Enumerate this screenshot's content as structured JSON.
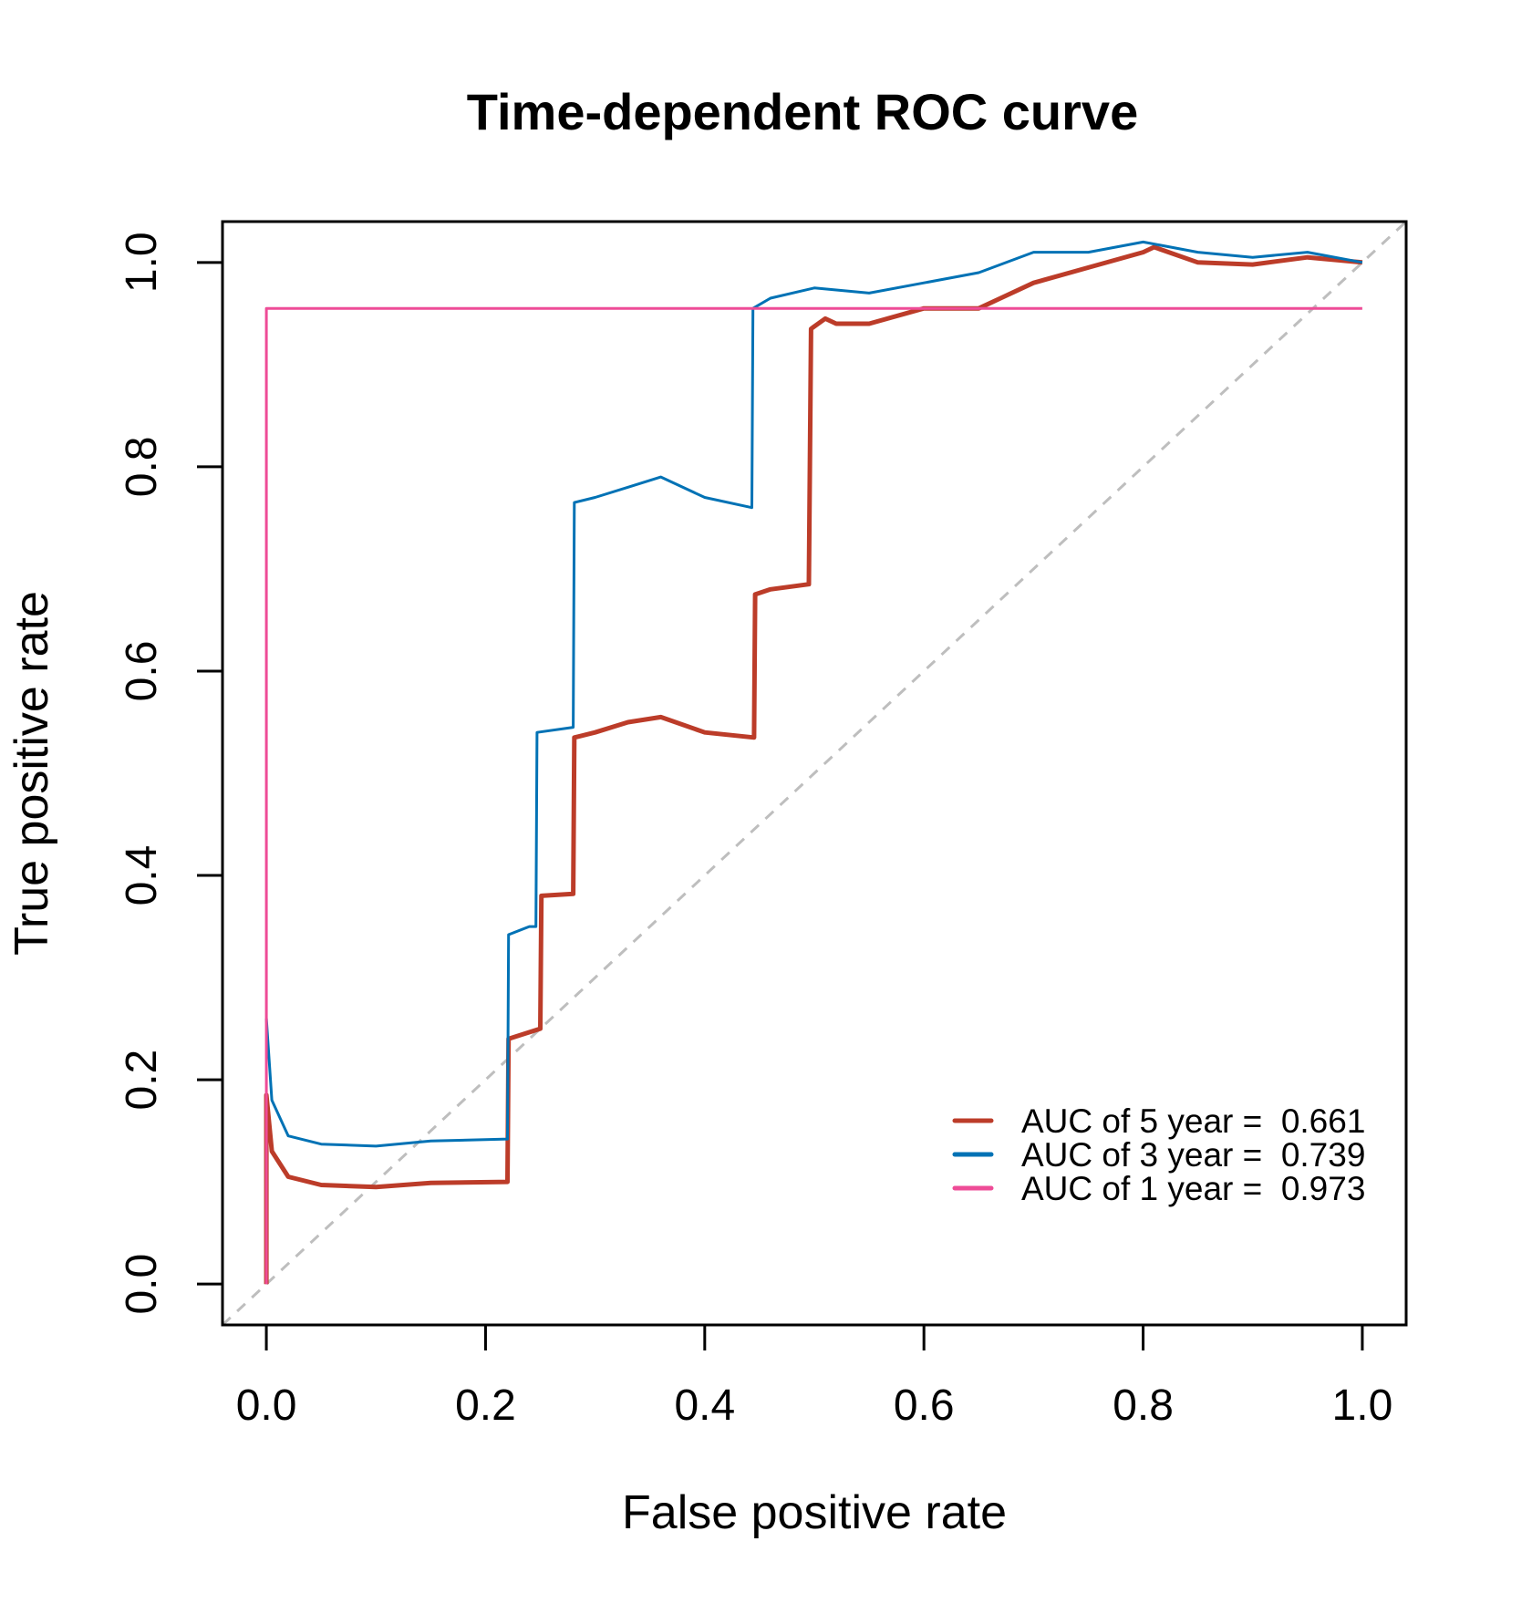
{
  "chart_data": {
    "type": "line",
    "title": "Time-dependent ROC curve",
    "xlabel": "False positive rate",
    "ylabel": "True positive rate",
    "xlim": [
      -0.04,
      1.04
    ],
    "ylim": [
      -0.04,
      1.04
    ],
    "xticks": [
      "0.0",
      "0.2",
      "0.4",
      "0.6",
      "0.8",
      "1.0"
    ],
    "yticks": [
      "0.0",
      "0.2",
      "0.4",
      "0.6",
      "0.8",
      "1.0"
    ],
    "grid": false,
    "legend_position": "bottom-right",
    "reference_line": {
      "type": "diagonal",
      "style": "dashed",
      "color": "#BEBEBE"
    },
    "series": [
      {
        "name": "AUC of 5 year =  0.661",
        "color": "#BC3C29",
        "points": [
          [
            0,
            0
          ],
          [
            0,
            0.185
          ],
          [
            0.005,
            0.13
          ],
          [
            0.02,
            0.105
          ],
          [
            0.05,
            0.097
          ],
          [
            0.1,
            0.095
          ],
          [
            0.15,
            0.099
          ],
          [
            0.22,
            0.1
          ],
          [
            0.221,
            0.24
          ],
          [
            0.25,
            0.25
          ],
          [
            0.251,
            0.38
          ],
          [
            0.28,
            0.382
          ],
          [
            0.281,
            0.535
          ],
          [
            0.3,
            0.54
          ],
          [
            0.33,
            0.55
          ],
          [
            0.36,
            0.555
          ],
          [
            0.4,
            0.54
          ],
          [
            0.445,
            0.535
          ],
          [
            0.446,
            0.675
          ],
          [
            0.46,
            0.68
          ],
          [
            0.495,
            0.685
          ],
          [
            0.497,
            0.935
          ],
          [
            0.51,
            0.945
          ],
          [
            0.52,
            0.94
          ],
          [
            0.55,
            0.94
          ],
          [
            0.6,
            0.955
          ],
          [
            0.65,
            0.955
          ],
          [
            0.67,
            0.965
          ],
          [
            0.7,
            0.98
          ],
          [
            0.75,
            0.995
          ],
          [
            0.8,
            1.01
          ],
          [
            0.81,
            1.015
          ],
          [
            0.85,
            1.0
          ],
          [
            0.9,
            0.998
          ],
          [
            0.95,
            1.005
          ],
          [
            1,
            1
          ]
        ]
      },
      {
        "name": "AUC of 3 year =  0.739",
        "color": "#0072B5",
        "points": [
          [
            0,
            0.26
          ],
          [
            0.005,
            0.18
          ],
          [
            0.02,
            0.145
          ],
          [
            0.05,
            0.137
          ],
          [
            0.1,
            0.135
          ],
          [
            0.15,
            0.14
          ],
          [
            0.22,
            0.142
          ],
          [
            0.221,
            0.342
          ],
          [
            0.24,
            0.35
          ],
          [
            0.246,
            0.35
          ],
          [
            0.247,
            0.54
          ],
          [
            0.28,
            0.545
          ],
          [
            0.281,
            0.765
          ],
          [
            0.3,
            0.77
          ],
          [
            0.33,
            0.78
          ],
          [
            0.36,
            0.79
          ],
          [
            0.4,
            0.77
          ],
          [
            0.443,
            0.76
          ],
          [
            0.444,
            0.955
          ],
          [
            0.46,
            0.965
          ],
          [
            0.5,
            0.975
          ],
          [
            0.55,
            0.97
          ],
          [
            0.6,
            0.98
          ],
          [
            0.65,
            0.99
          ],
          [
            0.7,
            1.01
          ],
          [
            0.75,
            1.01
          ],
          [
            0.8,
            1.02
          ],
          [
            0.85,
            1.01
          ],
          [
            0.9,
            1.005
          ],
          [
            0.95,
            1.01
          ],
          [
            1,
            1
          ]
        ]
      },
      {
        "name": "AUC of 1 year =  0.973",
        "color": "#EE4C97",
        "points": [
          [
            0,
            0
          ],
          [
            0,
            0.955
          ],
          [
            1,
            0.955
          ]
        ]
      }
    ]
  }
}
